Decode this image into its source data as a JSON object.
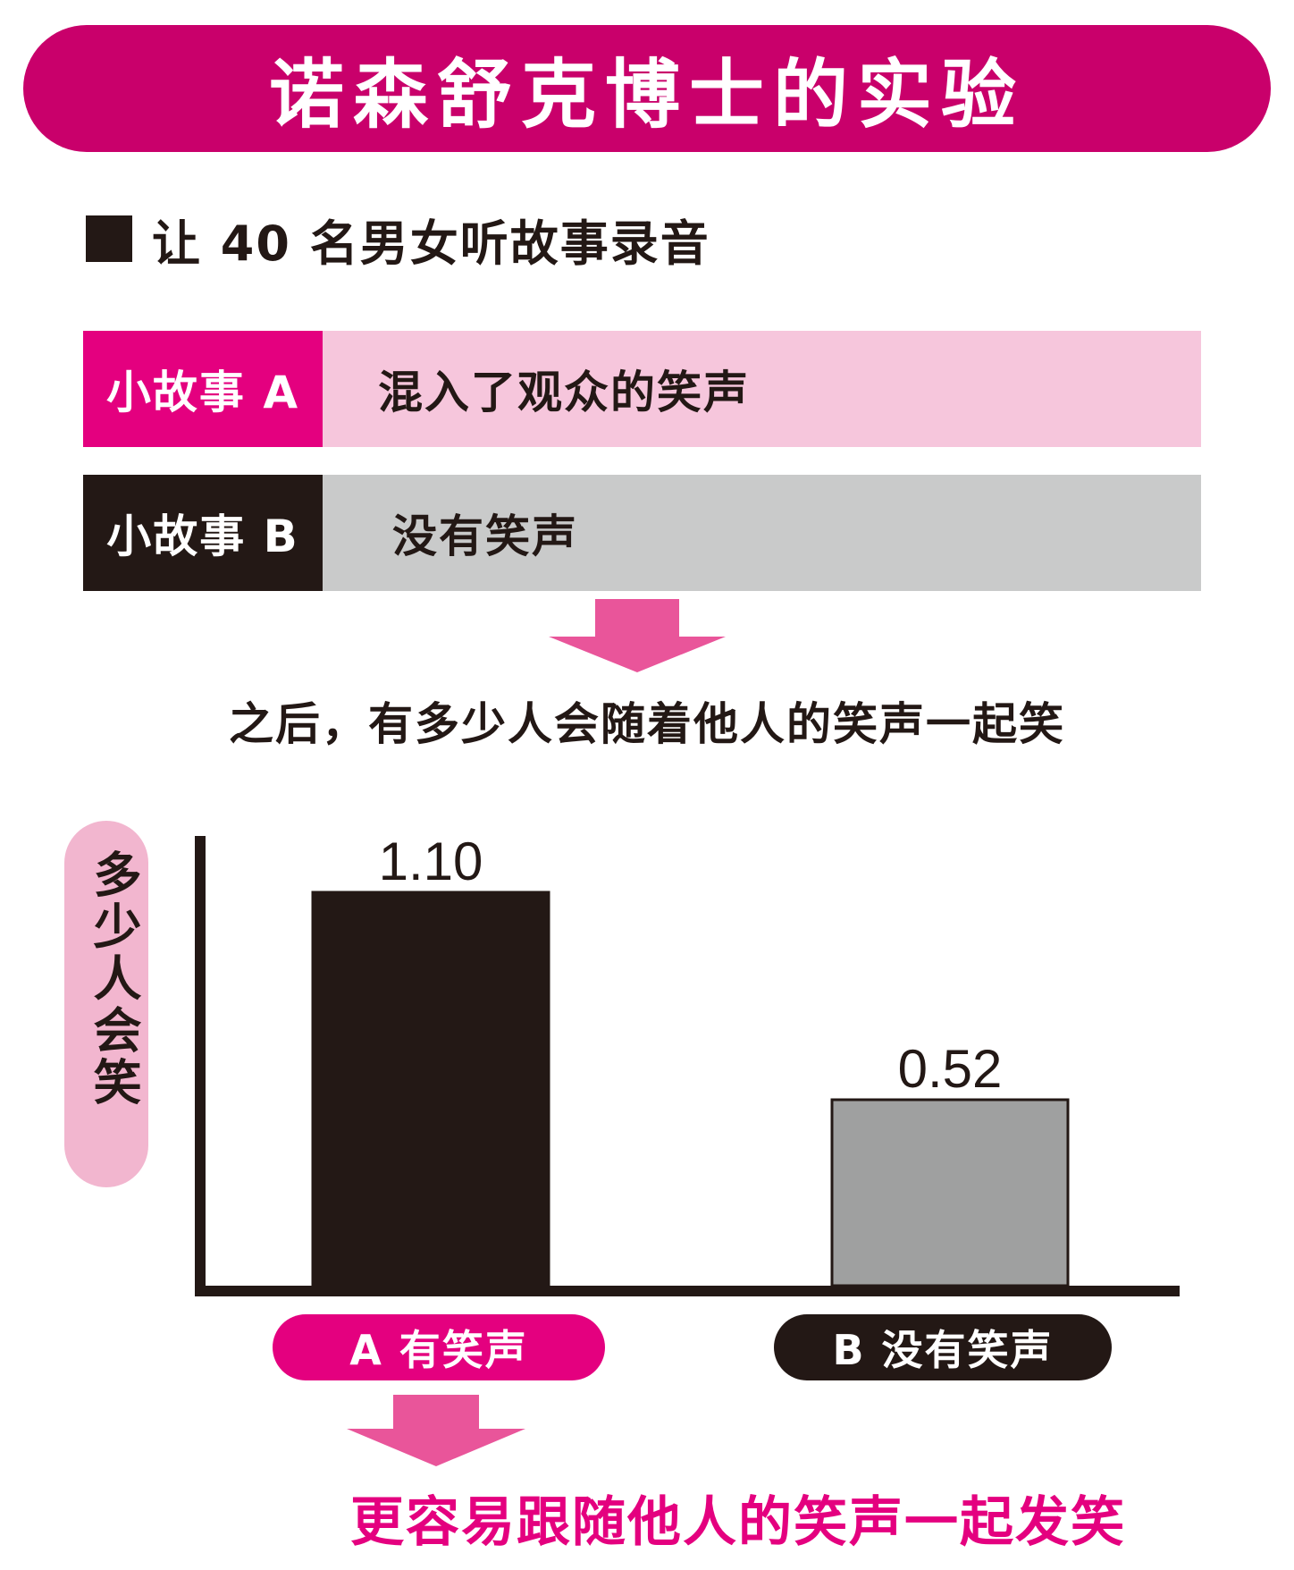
{
  "title": "诺森舒克博士的实验",
  "intro": "让 40 名男女听故事录音",
  "stories": [
    {
      "label": "小故事 A",
      "description": "混入了观众的笑声"
    },
    {
      "label": "小故事 B",
      "description": "没有笑声"
    }
  ],
  "question": "之后，有多少人会随着他人的笑声一起笑",
  "conclusion": "更容易跟随他人的笑声一起发笑",
  "colors": {
    "magenta": "#e4007f",
    "banner": "#c9006b",
    "pink_light": "#f6c6dc",
    "pill_pink": "#f2b6cf",
    "arrow_pink": "#e9559a",
    "black": "#231815",
    "gray_light": "#c9caca",
    "gray_bar": "#9fa0a0"
  },
  "chart_data": {
    "type": "bar",
    "ylabel": "多少人会笑",
    "categories": [
      "A 有笑声",
      "B 没有笑声"
    ],
    "values": [
      1.1,
      0.52
    ],
    "value_labels": [
      "1.10",
      "0.52"
    ],
    "bar_colors": [
      "#231815",
      "#9fa0a0"
    ],
    "ylim": [
      0,
      1.2
    ],
    "grid": false
  }
}
